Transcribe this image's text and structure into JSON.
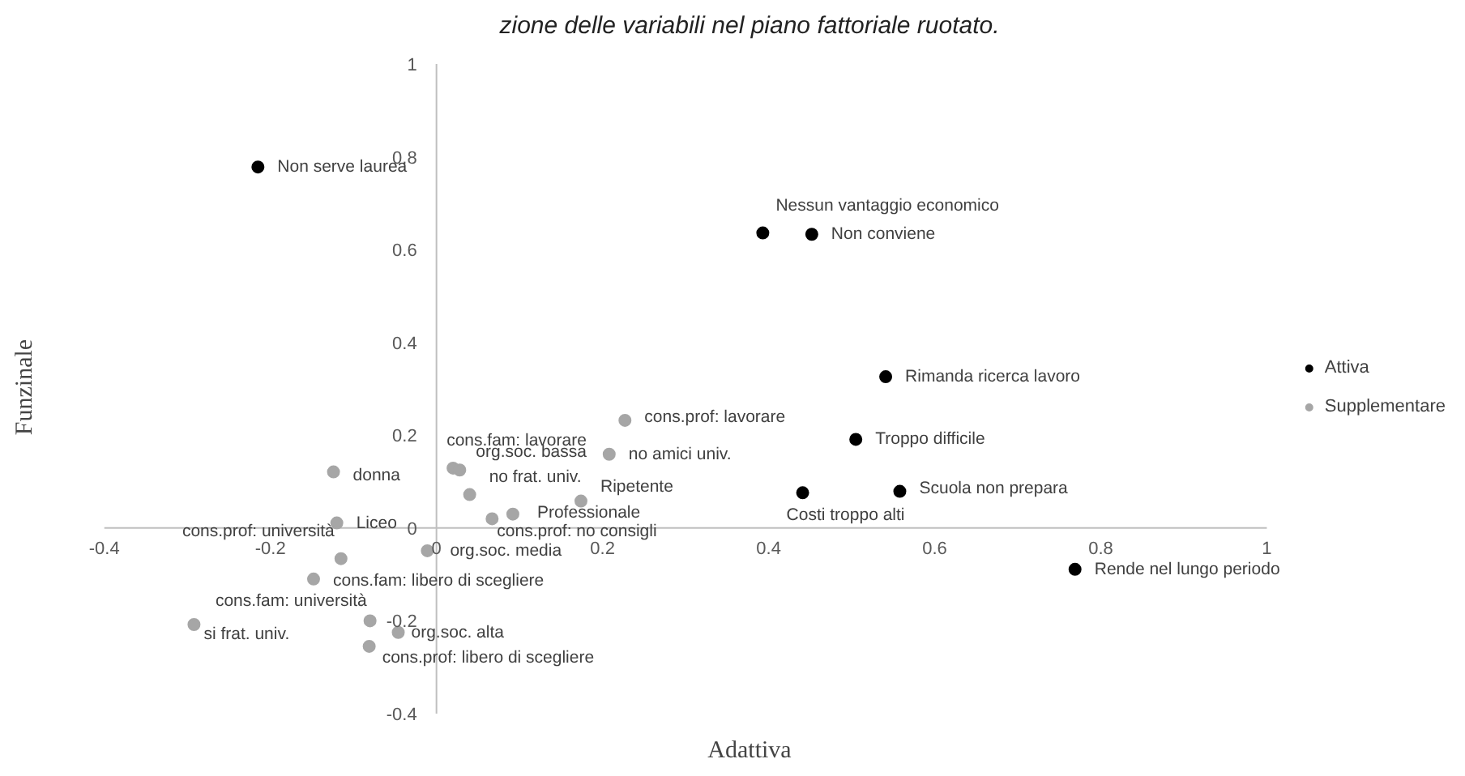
{
  "chart_data": {
    "type": "scatter",
    "title": "zione delle variabili nel piano fattoriale ruotato.",
    "xlabel": "Adattiva",
    "ylabel": "Funzinale",
    "xlim": [
      -0.4,
      1
    ],
    "ylim": [
      -0.4,
      1
    ],
    "xticks": [
      -0.4,
      -0.2,
      0,
      0.2,
      0.4,
      0.6,
      0.8,
      1
    ],
    "yticks": [
      -0.4,
      -0.2,
      0,
      0.2,
      0.4,
      0.6,
      0.8,
      1
    ],
    "grid": false,
    "legend": "right",
    "marker": "circle",
    "series": [
      {
        "name": "Attiva",
        "color": "#000000",
        "x": [
          -0.215,
          0.393,
          0.452,
          0.541,
          0.505,
          0.441,
          0.558,
          0.769
        ],
        "values": [
          0.778,
          0.636,
          0.633,
          0.326,
          0.191,
          0.076,
          0.079,
          -0.089
        ]
      },
      {
        "name": "Supplementare",
        "color": "#a6a6a6",
        "x": [
          -0.124,
          -0.12,
          -0.115,
          -0.148,
          -0.292,
          -0.08,
          -0.046,
          -0.081,
          -0.011,
          0.02,
          0.028,
          0.04,
          0.067,
          0.092,
          0.174,
          0.208,
          0.227
        ],
        "values": [
          0.121,
          0.011,
          -0.066,
          -0.11,
          -0.208,
          -0.2,
          -0.225,
          -0.255,
          -0.049,
          0.129,
          0.125,
          0.072,
          0.02,
          0.03,
          0.058,
          0.159,
          0.232
        ]
      }
    ],
    "annotations": [
      {
        "text": "Non serve laurea",
        "x": -0.215,
        "y": 0.778
      },
      {
        "text": "Nessun vantaggio economico",
        "x": 0.393,
        "y": 0.636
      },
      {
        "text": "Non conviene",
        "x": 0.452,
        "y": 0.633
      },
      {
        "text": "Rimanda ricerca lavoro",
        "x": 0.541,
        "y": 0.326
      },
      {
        "text": "Troppo difficile",
        "x": 0.505,
        "y": 0.191
      },
      {
        "text": "Costi troppo alti",
        "x": 0.441,
        "y": 0.076
      },
      {
        "text": "Scuola non prepara",
        "x": 0.558,
        "y": 0.079
      },
      {
        "text": "Rende nel lungo periodo",
        "x": 0.769,
        "y": -0.089
      },
      {
        "text": "donna",
        "x": -0.124,
        "y": 0.121
      },
      {
        "text": "Liceo",
        "x": -0.12,
        "y": 0.011
      },
      {
        "text": "cons.prof: università",
        "x": -0.115,
        "y": -0.066
      },
      {
        "text": "cons.fam: libero di scegliere",
        "x": -0.148,
        "y": -0.11
      },
      {
        "text": "si frat. univ.",
        "x": -0.292,
        "y": -0.208
      },
      {
        "text": "cons.fam: università",
        "x": -0.08,
        "y": -0.2
      },
      {
        "text": "org.soc. alta",
        "x": -0.046,
        "y": -0.225
      },
      {
        "text": "cons.prof: libero di scegliere",
        "x": -0.081,
        "y": -0.255
      },
      {
        "text": "org.soc. media",
        "x": -0.011,
        "y": -0.049
      },
      {
        "text": "cons.fam: lavorare",
        "x": 0.02,
        "y": 0.129
      },
      {
        "text": "org.soc. bassa",
        "x": 0.028,
        "y": 0.125
      },
      {
        "text": "no frat. univ.",
        "x": 0.04,
        "y": 0.072
      },
      {
        "text": "cons.prof: no consigli",
        "x": 0.067,
        "y": 0.02
      },
      {
        "text": "Professionale",
        "x": 0.092,
        "y": 0.03
      },
      {
        "text": "Ripetente",
        "x": 0.174,
        "y": 0.058
      },
      {
        "text": "no amici univ.",
        "x": 0.208,
        "y": 0.159
      },
      {
        "text": "cons.prof: lavorare",
        "x": 0.227,
        "y": 0.232
      }
    ]
  }
}
